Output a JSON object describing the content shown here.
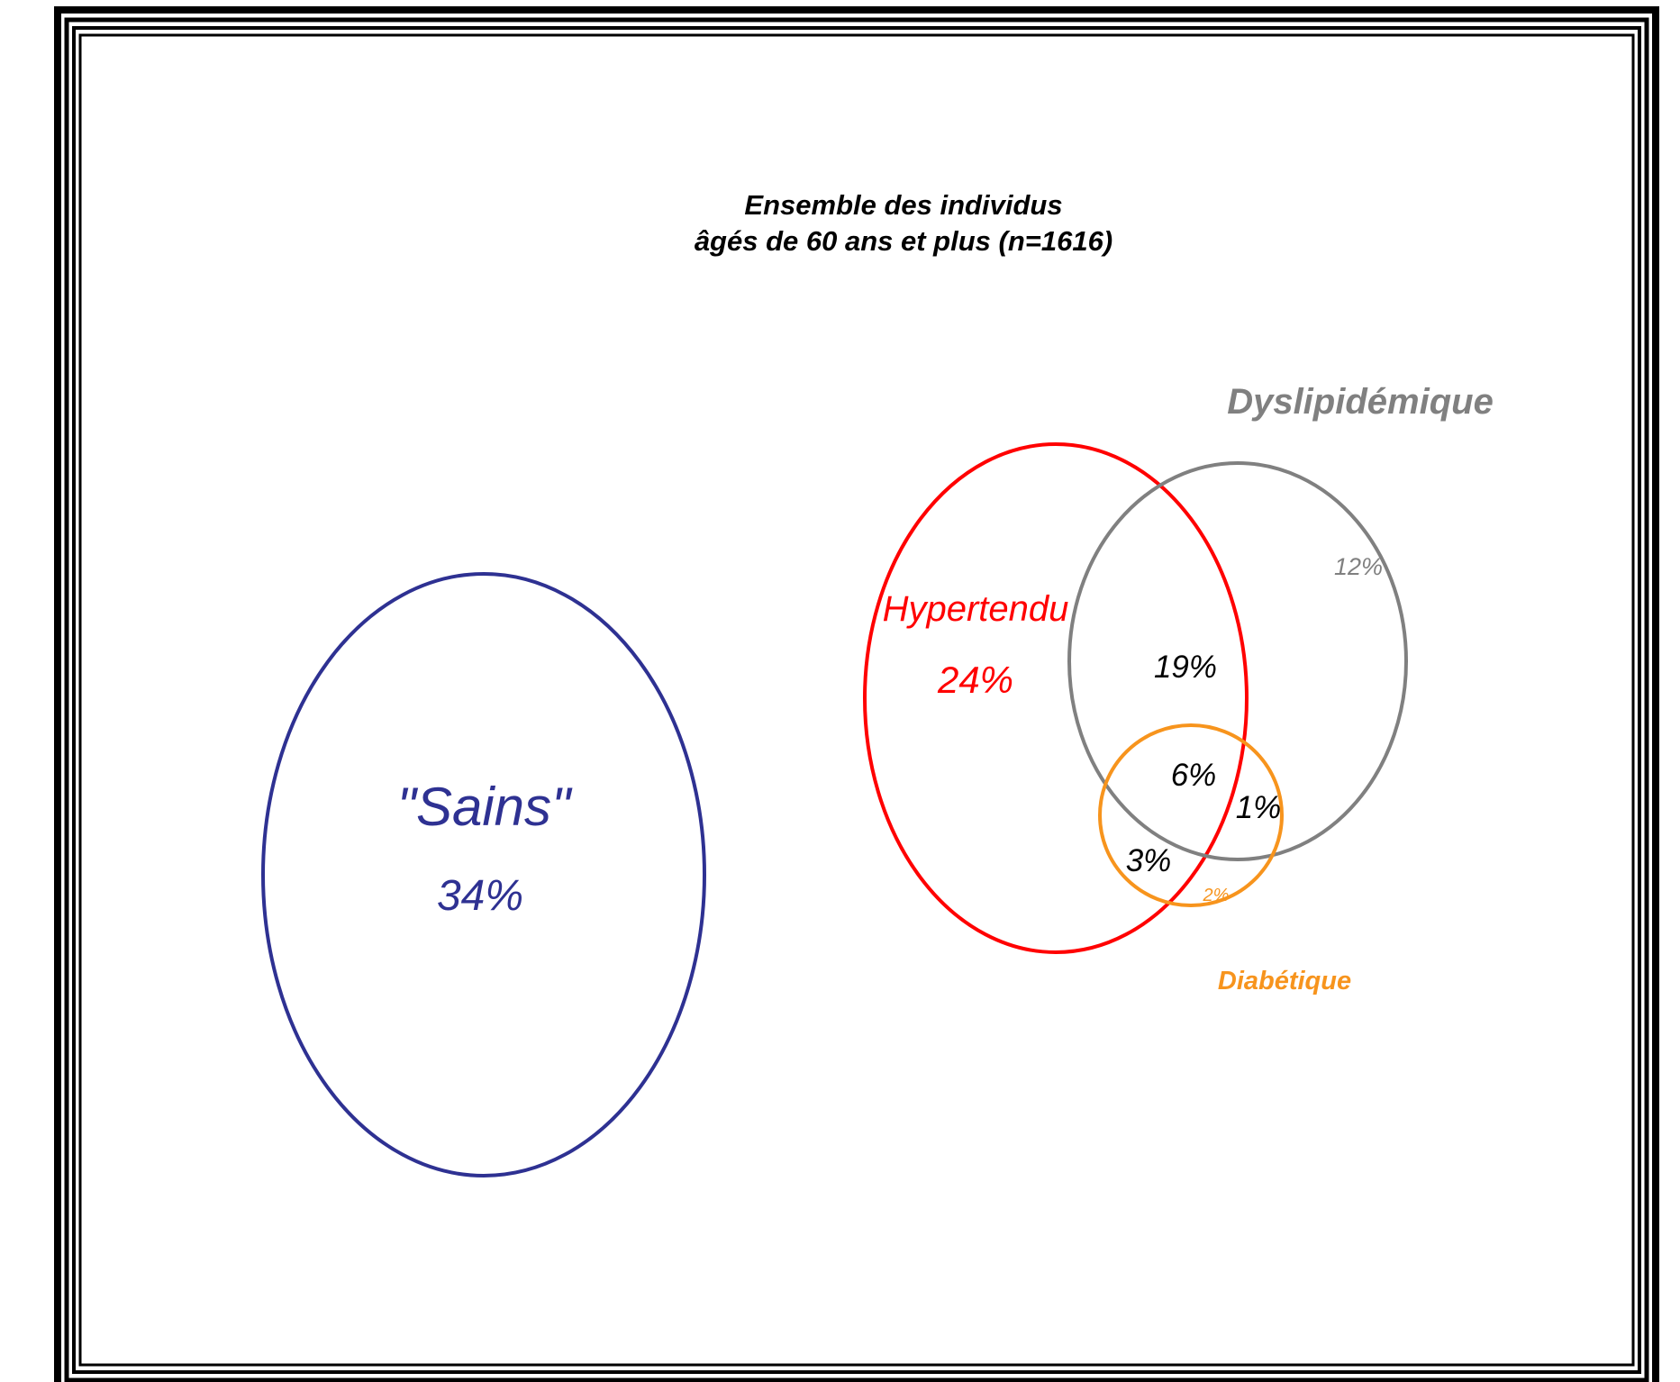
{
  "title": {
    "line1": "Ensemble des individus",
    "line2": "âgés de 60 ans et plus (n=1616)"
  },
  "sets": {
    "sains": {
      "label": "\"Sains\"",
      "value": "34%",
      "color": "#2e3192"
    },
    "hypertendu": {
      "label": "Hypertendu",
      "value": "24%",
      "color": "#ff0000"
    },
    "dyslipidemique": {
      "label": "Dyslipidémique",
      "value": "12%",
      "color": "#808080"
    },
    "diabetique": {
      "label": "Diabétique",
      "value": "2%",
      "color": "#f7941d"
    }
  },
  "intersections": {
    "hyper_dysli": "19%",
    "hyper_dysli_diab": "6%",
    "dysli_diab": "1%",
    "hyper_diab": "3%"
  }
}
